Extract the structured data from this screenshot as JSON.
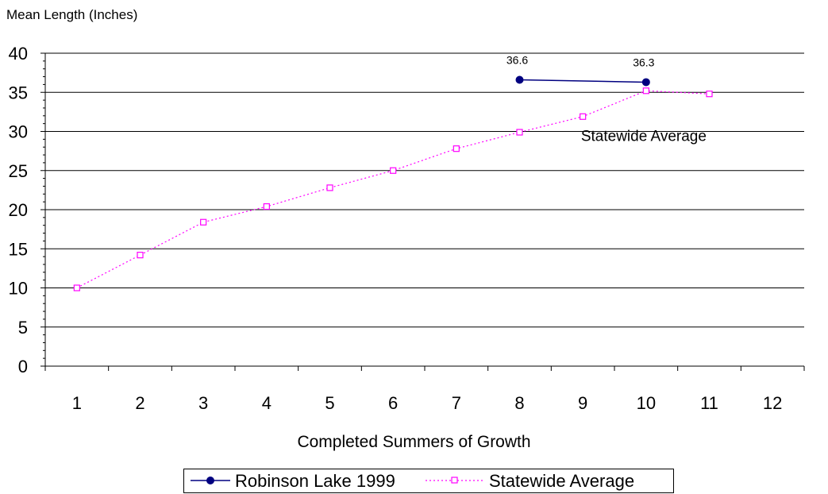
{
  "chart_data": {
    "type": "line",
    "ylabel": "Mean Length (Inches)",
    "xlabel": "Completed Summers of Growth",
    "categories": [
      "1",
      "2",
      "3",
      "4",
      "5",
      "6",
      "7",
      "8",
      "9",
      "10",
      "11",
      "12"
    ],
    "ylim": [
      0,
      40
    ],
    "yticks": [
      "0",
      "5",
      "10",
      "15",
      "20",
      "25",
      "30",
      "35",
      "40"
    ],
    "grid": true,
    "legend_position": "bottom",
    "series": [
      {
        "name": "Robinson Lake 1999",
        "color": "#000080",
        "style": "solid",
        "marker": "filled-circle",
        "points": [
          {
            "x": "8",
            "y": 36.6
          },
          {
            "x": "10",
            "y": 36.3
          }
        ],
        "data_labels": [
          "36.6",
          "36.3"
        ]
      },
      {
        "name": "Statewide Average",
        "color": "#ff00ff",
        "style": "dotted",
        "marker": "hollow-square",
        "points": [
          {
            "x": "1",
            "y": 10
          },
          {
            "x": "2",
            "y": 14.2
          },
          {
            "x": "3",
            "y": 18.4
          },
          {
            "x": "4",
            "y": 20.4
          },
          {
            "x": "5",
            "y": 22.8
          },
          {
            "x": "6",
            "y": 25
          },
          {
            "x": "7",
            "y": 27.8
          },
          {
            "x": "8",
            "y": 29.9
          },
          {
            "x": "9",
            "y": 31.9
          },
          {
            "x": "10",
            "y": 35.2
          },
          {
            "x": "11",
            "y": 34.8
          }
        ]
      }
    ],
    "annotations": [
      {
        "text": "Statewide Average",
        "near_x": "10",
        "near_y": 30
      }
    ]
  }
}
